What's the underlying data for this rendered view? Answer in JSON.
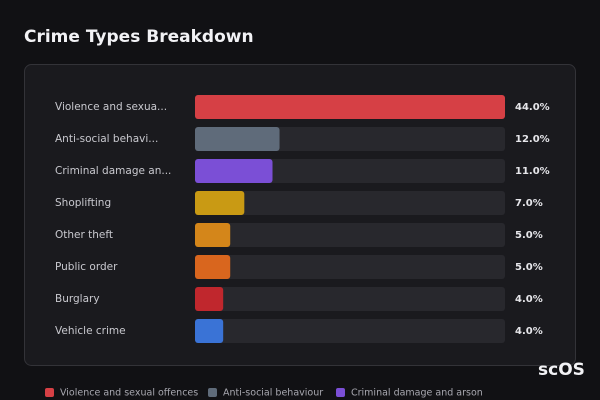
{
  "chart_data": {
    "type": "bar",
    "orientation": "horizontal",
    "title": "Crime Types Breakdown",
    "categories": [
      "Violence and sexua...",
      "Anti-social behavi...",
      "Criminal damage an...",
      "Shoplifting",
      "Other theft",
      "Public order",
      "Burglary",
      "Vehicle crime"
    ],
    "values": [
      44,
      12,
      11,
      7,
      5,
      5,
      4,
      4
    ],
    "value_labels": [
      "44.0%",
      "12.0%",
      "11.0%",
      "7.0%",
      "5.0%",
      "5.0%",
      "4.0%",
      "4.0%"
    ],
    "colors": [
      "#d64045",
      "#5f6b7a",
      "#7b4fd6",
      "#c99a14",
      "#d4861a",
      "#d9661e",
      "#c0272d",
      "#3a73d6"
    ],
    "xlim": [
      0,
      44
    ],
    "legend": [
      "Violence and sexual offences",
      "Anti-social behaviour",
      "Criminal damage and arson"
    ],
    "watermark": "scOS"
  }
}
